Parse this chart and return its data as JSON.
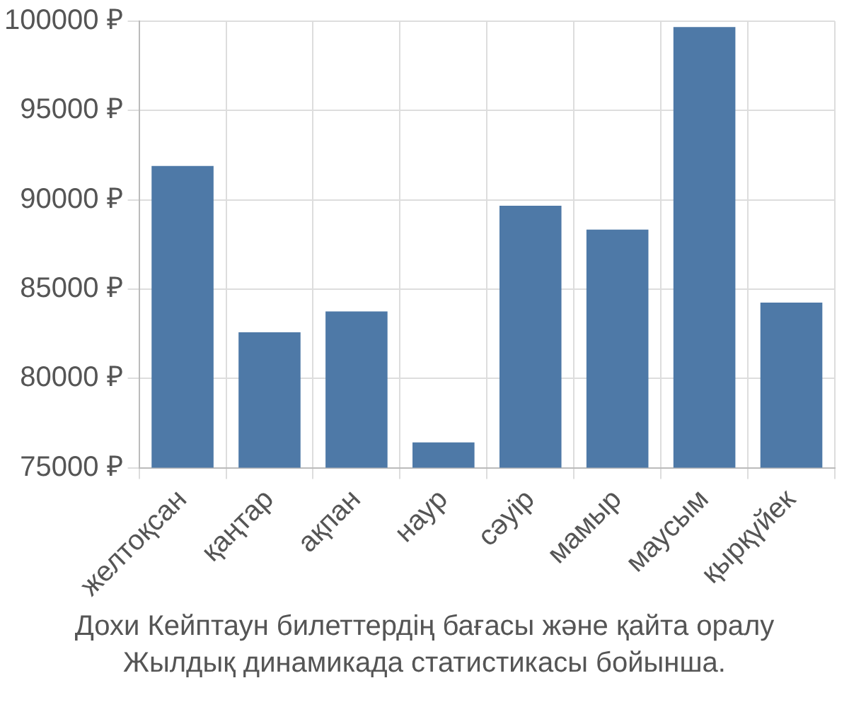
{
  "chart_data": {
    "type": "bar",
    "categories": [
      "желтоқсан",
      "қаңтар",
      "ақпан",
      "наур",
      "сәуір",
      "мамыр",
      "маусым",
      "қырқүйек"
    ],
    "values": [
      91900,
      82580,
      83750,
      76420,
      89670,
      88330,
      99670,
      84250
    ],
    "color": "#4e79a7",
    "ylim": [
      75000,
      100000
    ],
    "yticks": [
      {
        "value": 75000,
        "label": "75000 ₽"
      },
      {
        "value": 80000,
        "label": "80000 ₽"
      },
      {
        "value": 85000,
        "label": "85000 ₽"
      },
      {
        "value": 90000,
        "label": "90000 ₽"
      },
      {
        "value": 95000,
        "label": "95000 ₽"
      },
      {
        "value": 100000,
        "label": "100000 ₽"
      }
    ],
    "grid": true,
    "annotations": [
      "Дохи Кейптаун билеттердің бағасы және қайта оралу",
      "Жылдық динамикада статистикасы бойынша."
    ]
  }
}
